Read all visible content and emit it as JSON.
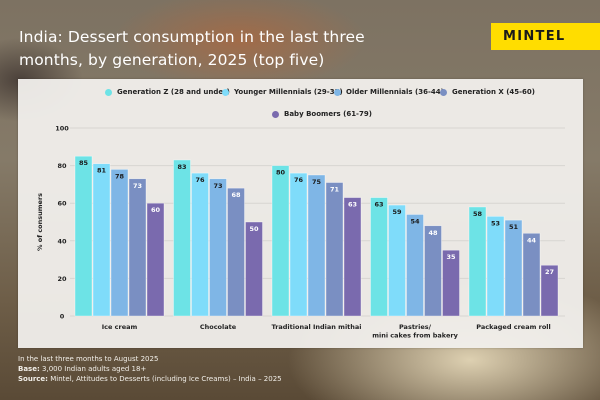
{
  "header": {
    "title": "India: Dessert consumption in the last three months, by generation, 2025 (top five)",
    "brand": "MINTEL",
    "brand_color": "#ffdd00"
  },
  "footer": {
    "period": "In the last three months to August 2025",
    "base_label": "Base:",
    "base_text": "3,000 Indian adults aged 18+",
    "source_label": "Source:",
    "source_text": "Mintel, Attitudes to Desserts (including Ice Creams) – India – 2025"
  },
  "chart_data": {
    "type": "bar",
    "title": "India: Dessert consumption in the last three months, by generation, 2025 (top five)",
    "xlabel": "",
    "ylabel": "% of consumers",
    "ylim": [
      0,
      100
    ],
    "yticks": [
      0,
      20,
      40,
      60,
      80,
      100
    ],
    "grid": true,
    "legend_position": "top",
    "categories": [
      "Ice cream",
      "Chocolate",
      "Traditional Indian mithai",
      "Pastries/\nmini cakes from bakery",
      "Packaged cream roll"
    ],
    "category_lines": [
      [
        "Ice cream"
      ],
      [
        "Chocolate"
      ],
      [
        "Traditional Indian mithai"
      ],
      [
        "Pastries/",
        "mini cakes from bakery"
      ],
      [
        "Packaged cream roll"
      ]
    ],
    "series": [
      {
        "name": "Generation Z (28 and under)",
        "color": "#6de3e6",
        "label_color": "#1a1a1a",
        "values": [
          85,
          83,
          80,
          63,
          58
        ]
      },
      {
        "name": "Younger Millennials (29-35)",
        "color": "#7fdcfa",
        "label_color": "#1a1a1a",
        "values": [
          81,
          76,
          76,
          59,
          53
        ]
      },
      {
        "name": "Older Millennials (36-44)",
        "color": "#7fb6e6",
        "label_color": "#1a1a1a",
        "values": [
          78,
          73,
          75,
          54,
          51
        ]
      },
      {
        "name": "Generation X (45-60)",
        "color": "#7a8fc2",
        "label_color": "#ffffff",
        "values": [
          73,
          68,
          71,
          48,
          44
        ]
      },
      {
        "name": "Baby Boomers (61-79)",
        "color": "#7a6aae",
        "label_color": "#ffffff",
        "values": [
          60,
          50,
          63,
          35,
          27
        ]
      }
    ]
  }
}
